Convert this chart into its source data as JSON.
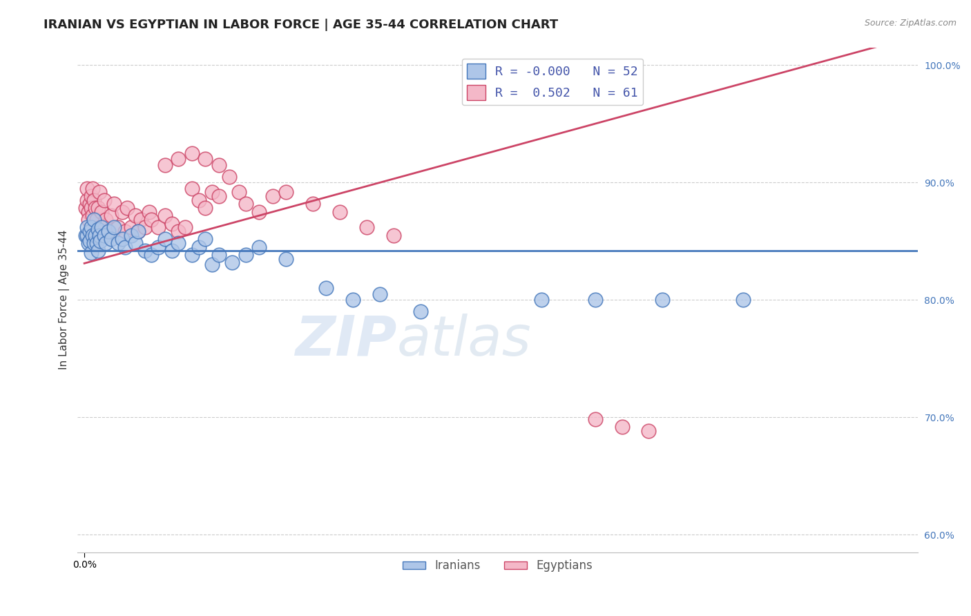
{
  "title": "IRANIAN VS EGYPTIAN IN LABOR FORCE | AGE 35-44 CORRELATION CHART",
  "source_text": "Source: ZipAtlas.com",
  "ylabel": "In Labor Force | Age 35-44",
  "watermark_zip": "ZIP",
  "watermark_atlas": "atlas",
  "xlim": [
    -0.005,
    0.62
  ],
  "ylim": [
    0.585,
    1.015
  ],
  "yticks": [
    0.6,
    0.7,
    0.8,
    0.9,
    1.0
  ],
  "ytick_labels": [
    "60.0%",
    "70.0%",
    "80.0%",
    "90.0%",
    "100.0%"
  ],
  "xticks": [
    0.0
  ],
  "xtick_labels": [
    "0.0%"
  ],
  "iranians_R": "-0.000",
  "iranians_N": 52,
  "egyptians_R": "0.502",
  "egyptians_N": 61,
  "iranian_color": "#aec6e8",
  "egyptian_color": "#f4b8c8",
  "iranian_line_color": "#4477bb",
  "egyptian_line_color": "#cc4466",
  "background_color": "#ffffff",
  "grid_color": "#cccccc",
  "title_fontsize": 13,
  "axis_label_fontsize": 11,
  "tick_fontsize": 10,
  "iranians_x": [
    0.001,
    0.002,
    0.002,
    0.003,
    0.004,
    0.004,
    0.005,
    0.005,
    0.006,
    0.007,
    0.007,
    0.008,
    0.009,
    0.01,
    0.01,
    0.011,
    0.012,
    0.013,
    0.015,
    0.016,
    0.018,
    0.02,
    0.022,
    0.025,
    0.028,
    0.03,
    0.035,
    0.038,
    0.04,
    0.045,
    0.05,
    0.055,
    0.06,
    0.065,
    0.07,
    0.08,
    0.085,
    0.09,
    0.095,
    0.1,
    0.11,
    0.12,
    0.13,
    0.15,
    0.18,
    0.2,
    0.22,
    0.25,
    0.34,
    0.38,
    0.43,
    0.49
  ],
  "iranians_y": [
    0.855,
    0.855,
    0.862,
    0.848,
    0.858,
    0.85,
    0.84,
    0.862,
    0.855,
    0.848,
    0.868,
    0.855,
    0.848,
    0.842,
    0.86,
    0.855,
    0.85,
    0.862,
    0.855,
    0.848,
    0.858,
    0.852,
    0.862,
    0.848,
    0.852,
    0.845,
    0.855,
    0.848,
    0.858,
    0.842,
    0.838,
    0.845,
    0.852,
    0.842,
    0.848,
    0.838,
    0.845,
    0.852,
    0.83,
    0.838,
    0.832,
    0.838,
    0.845,
    0.835,
    0.81,
    0.8,
    0.805,
    0.79,
    0.8,
    0.8,
    0.8,
    0.8
  ],
  "egyptians_x": [
    0.001,
    0.002,
    0.002,
    0.003,
    0.003,
    0.004,
    0.005,
    0.005,
    0.006,
    0.006,
    0.007,
    0.008,
    0.009,
    0.01,
    0.011,
    0.012,
    0.013,
    0.015,
    0.016,
    0.018,
    0.02,
    0.022,
    0.025,
    0.028,
    0.03,
    0.032,
    0.035,
    0.038,
    0.04,
    0.042,
    0.045,
    0.048,
    0.05,
    0.055,
    0.06,
    0.065,
    0.07,
    0.075,
    0.08,
    0.085,
    0.09,
    0.095,
    0.1,
    0.108,
    0.115,
    0.12,
    0.13,
    0.14,
    0.15,
    0.17,
    0.19,
    0.21,
    0.23,
    0.06,
    0.07,
    0.08,
    0.09,
    0.1,
    0.38,
    0.4,
    0.42
  ],
  "egyptians_y": [
    0.878,
    0.885,
    0.895,
    0.875,
    0.868,
    0.882,
    0.888,
    0.878,
    0.895,
    0.872,
    0.885,
    0.878,
    0.868,
    0.878,
    0.892,
    0.862,
    0.875,
    0.885,
    0.868,
    0.858,
    0.872,
    0.882,
    0.862,
    0.875,
    0.858,
    0.878,
    0.862,
    0.872,
    0.858,
    0.868,
    0.862,
    0.875,
    0.868,
    0.862,
    0.872,
    0.865,
    0.858,
    0.862,
    0.895,
    0.885,
    0.878,
    0.892,
    0.888,
    0.905,
    0.892,
    0.882,
    0.875,
    0.888,
    0.892,
    0.882,
    0.875,
    0.862,
    0.855,
    0.915,
    0.92,
    0.925,
    0.92,
    0.915,
    0.698,
    0.692,
    0.688
  ]
}
